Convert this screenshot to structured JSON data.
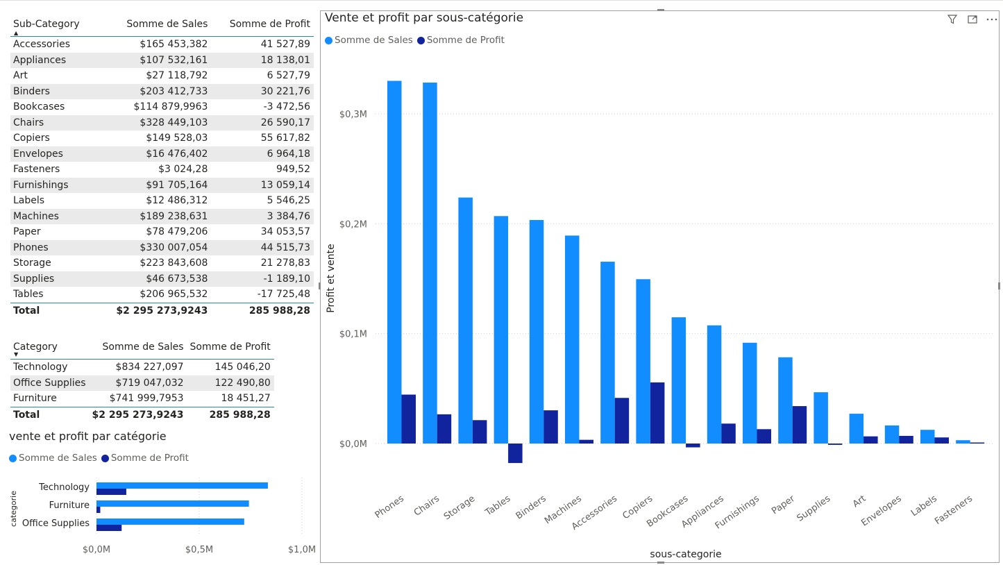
{
  "colors": {
    "sales": "#118DFF",
    "profit": "#12239E",
    "grid": "#cfcfcf",
    "axis_text": "#605e5c"
  },
  "subcat_table": {
    "headers": [
      "Sub-Category",
      "Somme de Sales",
      "Somme de Profit"
    ],
    "rows": [
      [
        "Accessories",
        "$165 453,382",
        "41 527,89"
      ],
      [
        "Appliances",
        "$107 532,161",
        "18 138,01"
      ],
      [
        "Art",
        "$27 118,792",
        "6 527,79"
      ],
      [
        "Binders",
        "$203 412,733",
        "30 221,76"
      ],
      [
        "Bookcases",
        "$114 879,9963",
        "-3 472,56"
      ],
      [
        "Chairs",
        "$328 449,103",
        "26 590,17"
      ],
      [
        "Copiers",
        "$149 528,03",
        "55 617,82"
      ],
      [
        "Envelopes",
        "$16 476,402",
        "6 964,18"
      ],
      [
        "Fasteners",
        "$3 024,28",
        "949,52"
      ],
      [
        "Furnishings",
        "$91 705,164",
        "13 059,14"
      ],
      [
        "Labels",
        "$12 486,312",
        "5 546,25"
      ],
      [
        "Machines",
        "$189 238,631",
        "3 384,76"
      ],
      [
        "Paper",
        "$78 479,206",
        "34 053,57"
      ],
      [
        "Phones",
        "$330 007,054",
        "44 515,73"
      ],
      [
        "Storage",
        "$223 843,608",
        "21 278,83"
      ],
      [
        "Supplies",
        "$46 673,538",
        "-1 189,10"
      ],
      [
        "Tables",
        "$206 965,532",
        "-17 725,48"
      ]
    ],
    "total": [
      "Total",
      "$2 295 273,9243",
      "285 988,28"
    ]
  },
  "cat_table": {
    "headers": [
      "Category",
      "Somme de Sales",
      "Somme de Profit"
    ],
    "rows": [
      [
        "Technology",
        "$834 227,097",
        "145 046,20"
      ],
      [
        "Office Supplies",
        "$719 047,032",
        "122 490,80"
      ],
      [
        "Furniture",
        "$741 999,7953",
        "18 451,27"
      ]
    ],
    "total": [
      "Total",
      "$2 295 273,9243",
      "285 988,28"
    ]
  },
  "chart_data": [
    {
      "type": "bar",
      "orientation": "horizontal",
      "title": "vente et profit par catégorie",
      "ylabel": "categorie",
      "xlabel": "",
      "categories": [
        "Technology",
        "Furniture",
        "Office Supplies"
      ],
      "series": [
        {
          "name": "Somme de Sales",
          "values": [
            834227.097,
            741999.7953,
            719047.032
          ]
        },
        {
          "name": "Somme de Profit",
          "values": [
            145046.2,
            18451.27,
            122490.8
          ]
        }
      ],
      "xlim": [
        0,
        1000000
      ],
      "x_ticks": [
        0,
        500000,
        1000000
      ],
      "x_tick_labels": [
        "$0,0M",
        "$0,5M",
        "$1,0M"
      ],
      "legend": "top-left",
      "grid": true
    },
    {
      "type": "bar",
      "title": "Vente et profit par sous-catégorie",
      "xlabel": "sous-categorie",
      "ylabel": "Profit et vente",
      "categories": [
        "Phones",
        "Chairs",
        "Storage",
        "Tables",
        "Binders",
        "Machines",
        "Accessories",
        "Copiers",
        "Bookcases",
        "Appliances",
        "Furnishings",
        "Paper",
        "Supplies",
        "Art",
        "Envelopes",
        "Labels",
        "Fasteners"
      ],
      "series": [
        {
          "name": "Somme de Sales",
          "values": [
            330007.054,
            328449.103,
            223843.608,
            206965.532,
            203412.733,
            189238.631,
            165453.382,
            149528.03,
            114879.9963,
            107532.161,
            91705.164,
            78479.206,
            46673.538,
            27118.792,
            16476.402,
            12486.312,
            3024.28
          ]
        },
        {
          "name": "Somme de Profit",
          "values": [
            44515.73,
            26590.17,
            21278.83,
            -17725.48,
            30221.76,
            3384.76,
            41527.89,
            55617.82,
            -3472.56,
            18138.01,
            13059.14,
            34053.57,
            -1189.1,
            6527.79,
            6964.18,
            5546.25,
            949.52
          ]
        }
      ],
      "ylim": [
        -25000,
        345000
      ],
      "y_ticks": [
        0,
        100000,
        200000,
        300000
      ],
      "y_tick_labels": [
        "$0,0M",
        "$0,1M",
        "$0,2M",
        "$0,3M"
      ],
      "legend": "top-left",
      "grid": true
    }
  ]
}
